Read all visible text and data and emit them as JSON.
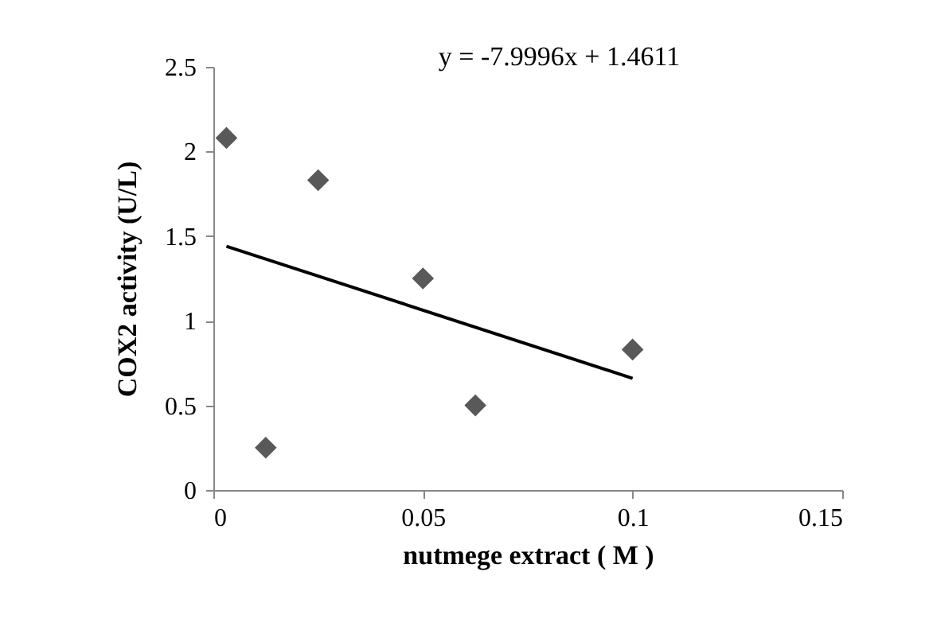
{
  "chart_data": {
    "type": "scatter",
    "xlabel": "nutmege extract ( M )",
    "ylabel": "COX2 activity  (U/L)",
    "annotations": [
      "y = -7.9996x + 1.4611"
    ],
    "xlim": [
      0,
      0.15
    ],
    "xticks": [
      0,
      0.05,
      0.1,
      0.15
    ],
    "ylim": [
      0,
      2.5
    ],
    "yticks": [
      0,
      0.5,
      1,
      1.5,
      2,
      2.5
    ],
    "series": [
      {
        "color": "#595959",
        "marker": "diamond",
        "x": [
          0.003125,
          0.0125,
          0.025,
          0.05,
          0.0625,
          0.1
        ],
        "values": [
          2.08,
          0.25,
          1.83,
          1.25,
          0.5,
          0.83
        ]
      },
      {
        "type": "line",
        "color": "#000000",
        "x": [
          0.003125,
          0.1
        ],
        "values": [
          1.44,
          0.66
        ]
      }
    ]
  }
}
